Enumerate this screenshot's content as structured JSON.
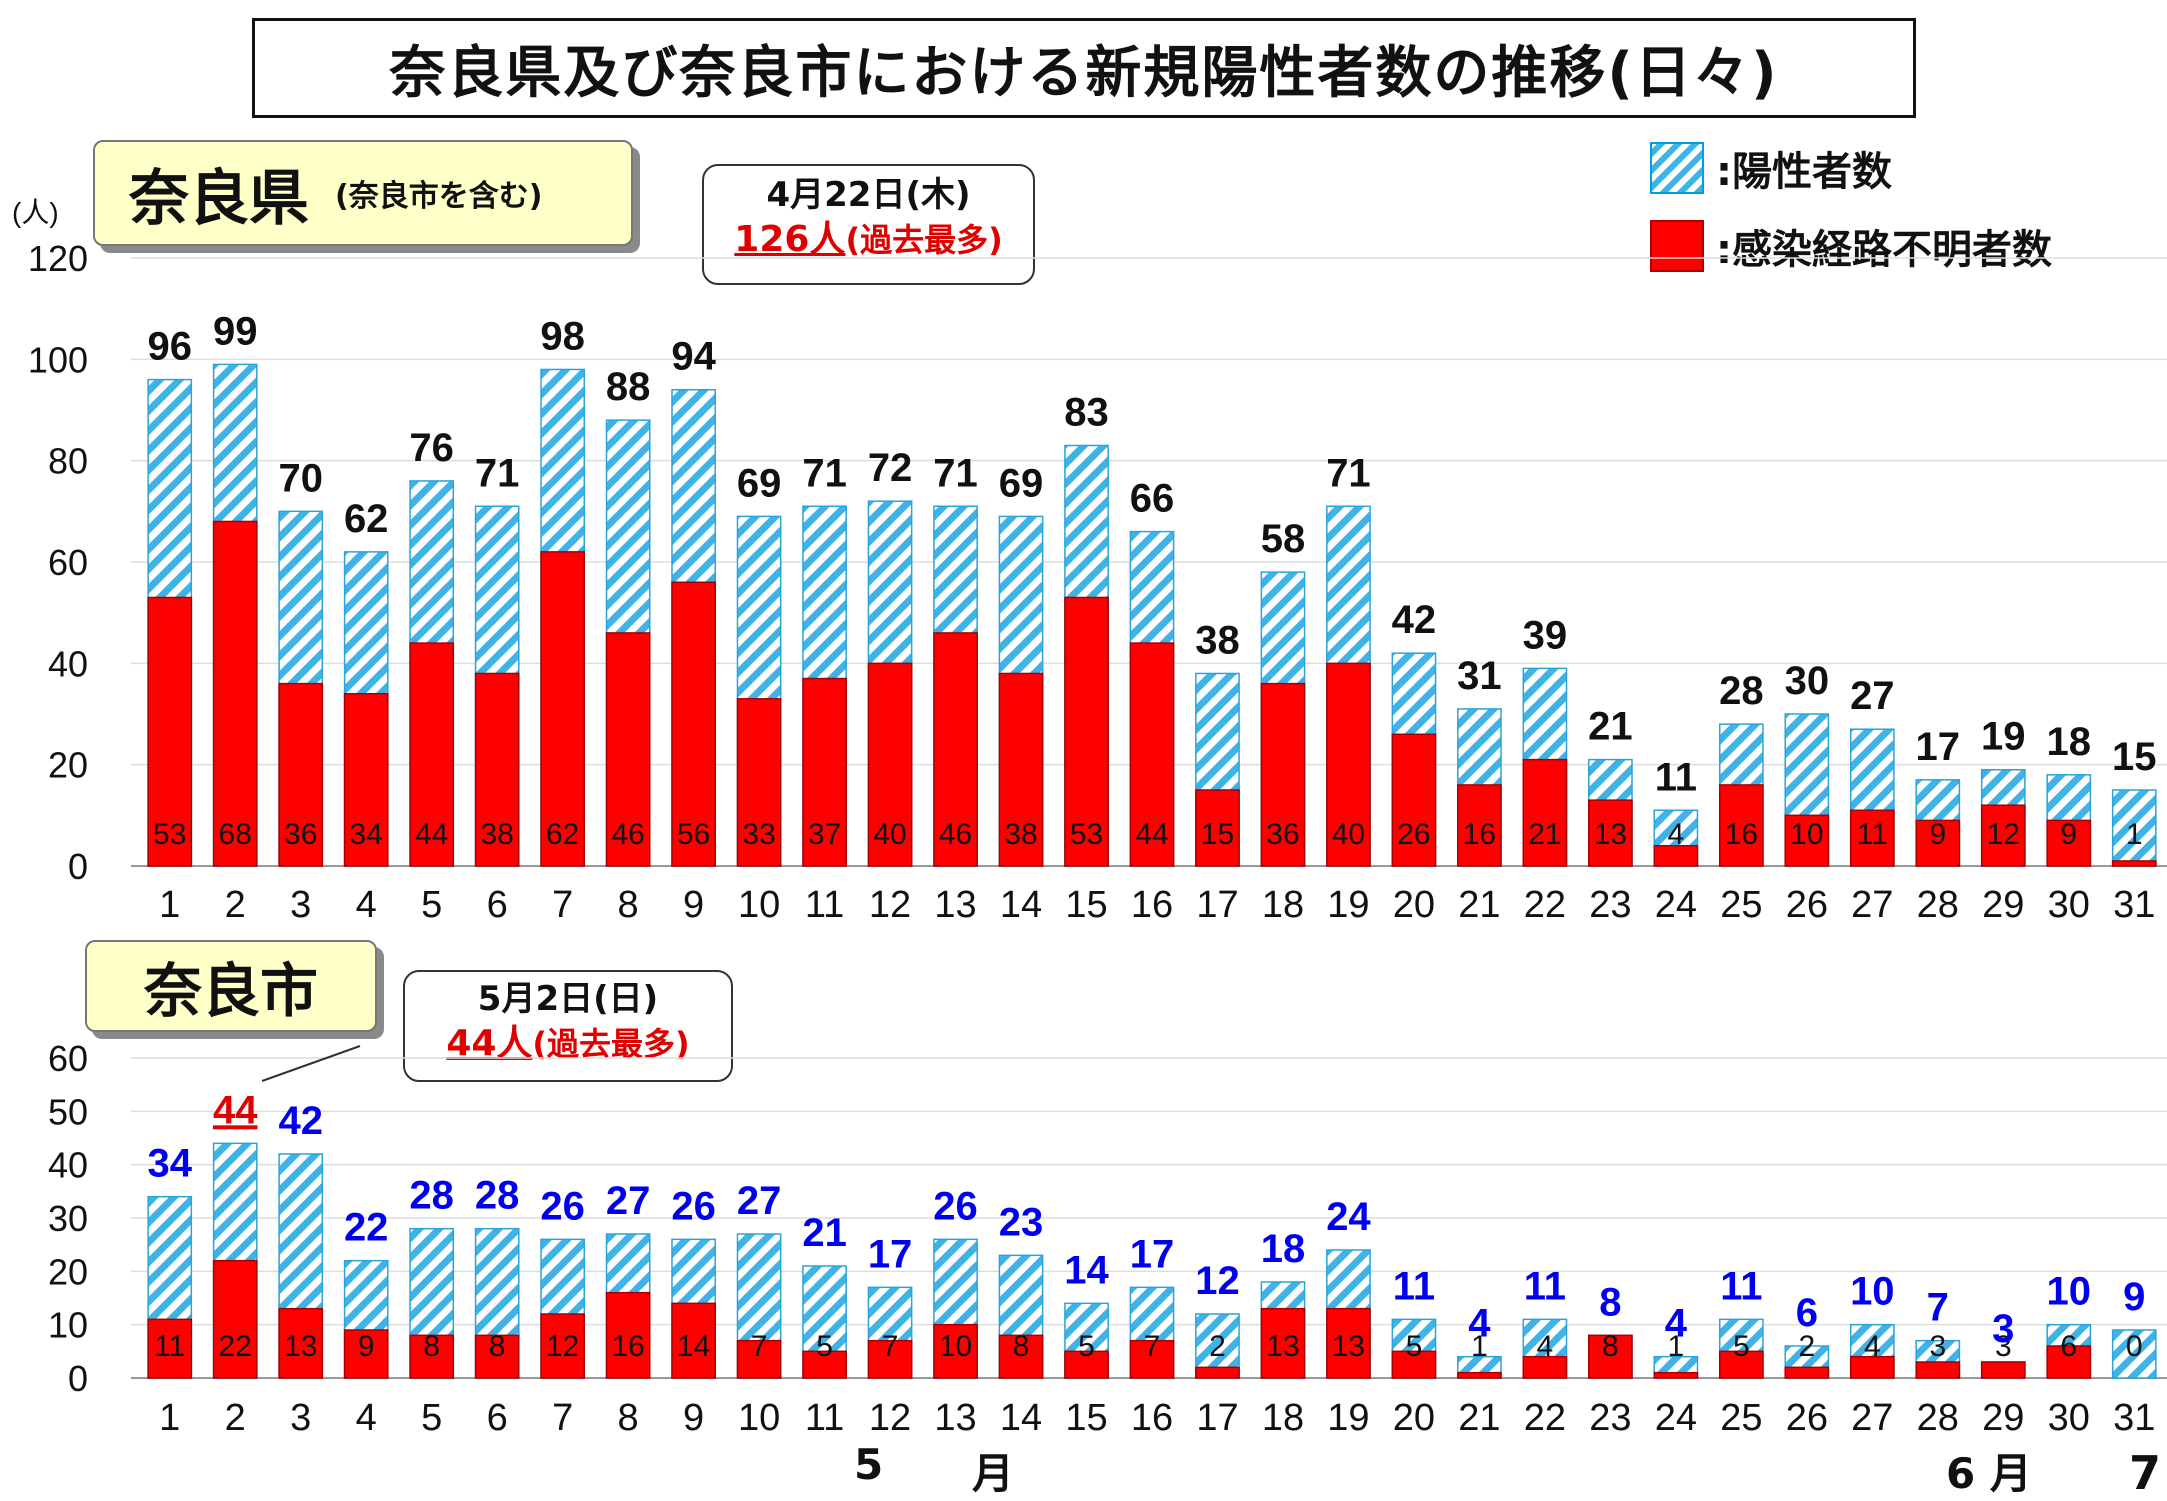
{
  "title": "奈良県及び奈良市における新規陽性者数の推移(日々)",
  "pref_label": "奈良県",
  "pref_label_sub": "(奈良市を含む)",
  "city_label": "奈良市",
  "unit_label": "(人)",
  "callout_pref": {
    "date": "4月22日(木)",
    "count": "126人",
    "note": "(過去最多)"
  },
  "callout_city": {
    "date": "5月2日(日)",
    "count": "44人",
    "note": "(過去最多)"
  },
  "legend": {
    "positive": ":陽性者数",
    "unknown": ":感染経路不明者数"
  },
  "month_labels": {
    "may_num": "5",
    "may_kanji": "月",
    "june": "6 月"
  },
  "page_number": "7",
  "colors": {
    "hatch": "#3fb3e6",
    "red": "#ff0000",
    "city_total_label": "#0000ee",
    "record": "#e00000"
  },
  "chart_data": [
    {
      "type": "bar",
      "name": "奈良県",
      "categories": [
        "1",
        "2",
        "3",
        "4",
        "5",
        "6",
        "7",
        "8",
        "9",
        "10",
        "11",
        "12",
        "13",
        "14",
        "15",
        "16",
        "17",
        "18",
        "19",
        "20",
        "21",
        "22",
        "23",
        "24",
        "25",
        "26",
        "27",
        "28",
        "29",
        "30",
        "31"
      ],
      "series": [
        {
          "name": "陽性者数",
          "values": [
            96,
            99,
            70,
            62,
            76,
            71,
            98,
            88,
            94,
            69,
            71,
            72,
            71,
            69,
            83,
            66,
            38,
            58,
            71,
            42,
            31,
            39,
            21,
            11,
            28,
            30,
            27,
            17,
            19,
            18,
            15
          ]
        },
        {
          "name": "感染経路不明者数",
          "values": [
            53,
            68,
            36,
            34,
            44,
            38,
            62,
            46,
            56,
            33,
            37,
            40,
            46,
            38,
            53,
            44,
            15,
            36,
            40,
            26,
            16,
            21,
            13,
            4,
            16,
            10,
            11,
            9,
            12,
            9,
            1
          ]
        }
      ],
      "ylim": [
        0,
        120
      ],
      "yticks": [
        0,
        20,
        40,
        60,
        80,
        100,
        120
      ],
      "grid": true
    },
    {
      "type": "bar",
      "name": "奈良市",
      "categories": [
        "1",
        "2",
        "3",
        "4",
        "5",
        "6",
        "7",
        "8",
        "9",
        "10",
        "11",
        "12",
        "13",
        "14",
        "15",
        "16",
        "17",
        "18",
        "19",
        "20",
        "21",
        "22",
        "23",
        "24",
        "25",
        "26",
        "27",
        "28",
        "29",
        "30",
        "31"
      ],
      "series": [
        {
          "name": "陽性者数",
          "values": [
            34,
            44,
            42,
            22,
            28,
            28,
            26,
            27,
            26,
            27,
            21,
            17,
            26,
            23,
            14,
            17,
            12,
            18,
            24,
            11,
            4,
            11,
            8,
            4,
            11,
            6,
            10,
            7,
            3,
            10,
            9
          ]
        },
        {
          "name": "感染経路不明者数",
          "values": [
            11,
            22,
            13,
            9,
            8,
            8,
            12,
            16,
            14,
            7,
            5,
            7,
            10,
            8,
            5,
            7,
            2,
            13,
            13,
            5,
            1,
            4,
            8,
            1,
            5,
            2,
            4,
            3,
            3,
            6,
            0
          ]
        }
      ],
      "ylim": [
        0,
        60
      ],
      "yticks": [
        0,
        10,
        20,
        30,
        40,
        50,
        60
      ],
      "grid": true
    }
  ]
}
